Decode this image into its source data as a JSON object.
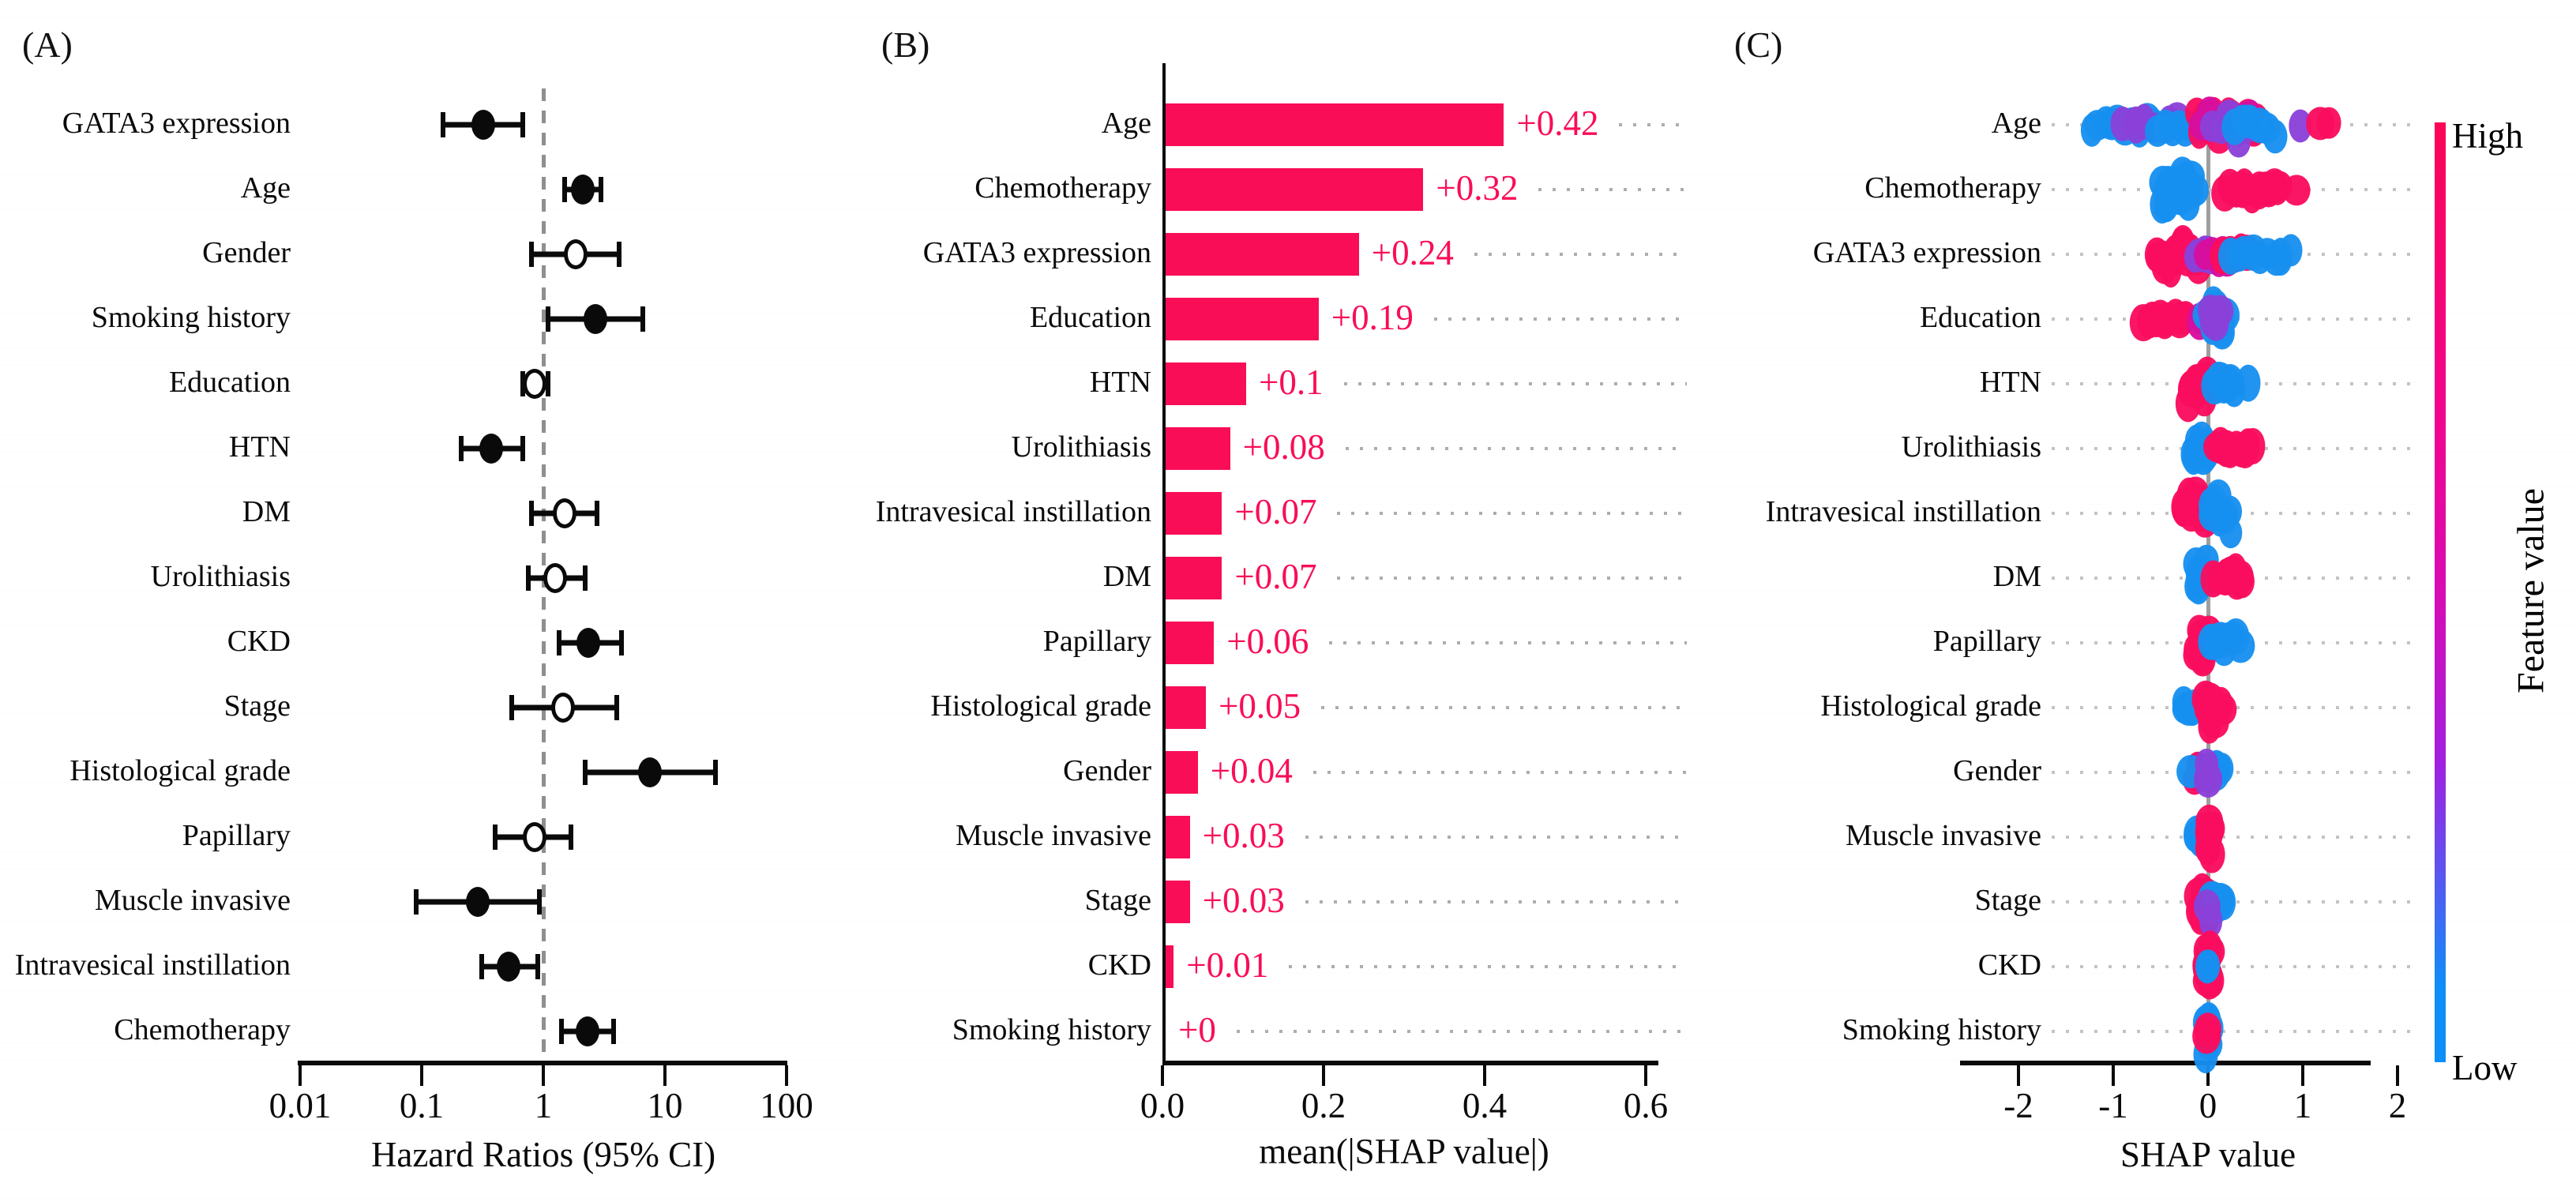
{
  "panels": [
    {
      "label": "(A)"
    },
    {
      "label": "(B)"
    },
    {
      "label": "(C)"
    }
  ],
  "chart_data": [
    {
      "id": "A",
      "type": "scatter",
      "subtype": "forest-plot",
      "xlabel": "Hazard Ratios (95% CI)",
      "xscale": "log",
      "xlim": [
        0.01,
        100
      ],
      "xticks": [
        0.01,
        0.1,
        1,
        10,
        100
      ],
      "xtick_labels": [
        "0.01",
        "0.1",
        "1",
        "10",
        "100"
      ],
      "reference_line": 1,
      "categories": [
        "GATA3 expression",
        "Age",
        "Gender",
        "Smoking history",
        "Education",
        "HTN",
        "DM",
        "Urolithiasis",
        "CKD",
        "Stage",
        "Histological grade",
        "Papillary",
        "Muscle invasive",
        "Intravesical instillation",
        "Chemotherapy"
      ],
      "hazard_ratio": [
        0.32,
        2.1,
        1.85,
        2.7,
        0.85,
        0.37,
        1.5,
        1.25,
        2.35,
        1.45,
        7.5,
        0.85,
        0.29,
        0.52,
        2.3
      ],
      "ci_low": [
        0.15,
        1.5,
        0.8,
        1.1,
        0.68,
        0.21,
        0.8,
        0.75,
        1.35,
        0.55,
        2.2,
        0.4,
        0.09,
        0.31,
        1.4
      ],
      "ci_high": [
        0.68,
        3.0,
        4.2,
        6.6,
        1.1,
        0.68,
        2.75,
        2.2,
        4.4,
        4.0,
        26.0,
        1.7,
        0.93,
        0.9,
        3.8
      ],
      "marker_filled": [
        true,
        true,
        false,
        true,
        false,
        true,
        false,
        false,
        true,
        false,
        true,
        false,
        true,
        true,
        true
      ]
    },
    {
      "id": "B",
      "type": "bar",
      "orientation": "horizontal",
      "xlabel": "mean(|SHAP value|)",
      "xlim": [
        0,
        0.6
      ],
      "xticks": [
        0.0,
        0.2,
        0.4,
        0.6
      ],
      "xtick_labels": [
        "0.0",
        "0.2",
        "0.4",
        "0.6"
      ],
      "bar_color": "#f90d56",
      "categories": [
        "Age",
        "Chemotherapy",
        "GATA3 expression",
        "Education",
        "HTN",
        "Urolithiasis",
        "Intravesical instillation",
        "DM",
        "Papillary",
        "Histological grade",
        "Gender",
        "Muscle invasive",
        "Stage",
        "CKD",
        "Smoking history"
      ],
      "values": [
        0.42,
        0.32,
        0.24,
        0.19,
        0.1,
        0.08,
        0.07,
        0.07,
        0.06,
        0.05,
        0.04,
        0.03,
        0.03,
        0.01,
        0.0
      ],
      "value_labels": [
        "+0.42",
        "+0.32",
        "+0.24",
        "+0.19",
        "+0.1",
        "+0.08",
        "+0.07",
        "+0.07",
        "+0.06",
        "+0.05",
        "+0.04",
        "+0.03",
        "+0.03",
        "+0.01",
        "+0"
      ]
    },
    {
      "id": "C",
      "type": "scatter",
      "subtype": "beeswarm",
      "xlabel": "SHAP value",
      "xlim": [
        -2,
        2
      ],
      "xticks": [
        -2,
        -1,
        0,
        1,
        2
      ],
      "xtick_labels": [
        "-2",
        "-1",
        "0",
        "1",
        "2"
      ],
      "reference_line": 0,
      "colorbar": {
        "high": "High",
        "low": "Low",
        "title": "Feature value",
        "gradient": [
          "#fa0556 0%",
          "#f10590 32%",
          "#d80bb4 50%",
          "#a21fe0 68%",
          "#5b55f0 80%",
          "#0d8ef8 92%",
          "#0d8ef8 100%"
        ]
      },
      "point_colors": {
        "red": "#fa0c5e",
        "magenta": "#d60f9e",
        "purple": "#8a41d8",
        "blue": "#1790ef"
      },
      "categories": [
        "Age",
        "Chemotherapy",
        "GATA3 expression",
        "Education",
        "HTN",
        "Urolithiasis",
        "Intravesical instillation",
        "DM",
        "Papillary",
        "Histological grade",
        "Gender",
        "Muscle invasive",
        "Stage",
        "CKD",
        "Smoking history"
      ],
      "rows": [
        {
          "label": "Age",
          "clusters": [
            {
              "x0": -1.27,
              "x1": -0.55,
              "n": 10,
              "color": "blue",
              "ry": 12
            },
            {
              "x0": -0.95,
              "x1": -0.25,
              "n": 6,
              "color": "purple",
              "ry": 10
            },
            {
              "x0": -0.55,
              "x1": -0.1,
              "n": 7,
              "color": "blue",
              "ry": 14
            },
            {
              "x0": -0.15,
              "x1": 0.55,
              "n": 18,
              "color": "red",
              "ry": 26
            },
            {
              "x0": -0.1,
              "x1": 0.5,
              "n": 8,
              "color": "magenta",
              "ry": 30
            },
            {
              "x0": 0.0,
              "x1": 0.55,
              "n": 6,
              "color": "purple",
              "ry": 28
            },
            {
              "x0": 0.25,
              "x1": 0.75,
              "n": 6,
              "color": "blue",
              "ry": 20
            },
            {
              "x0": 0.95,
              "x1": 1.0,
              "n": 1,
              "color": "purple",
              "ry": 2
            },
            {
              "x0": 1.15,
              "x1": 1.3,
              "n": 2,
              "color": "red",
              "ry": 4
            }
          ]
        },
        {
          "label": "Chemotherapy",
          "clusters": [
            {
              "x0": -0.5,
              "x1": -0.15,
              "n": 22,
              "color": "blue",
              "ry": 34
            },
            {
              "x0": 0.15,
              "x1": 0.8,
              "n": 14,
              "color": "red",
              "ry": 12
            },
            {
              "x0": 0.9,
              "x1": 0.93,
              "n": 1,
              "color": "red",
              "ry": 2
            }
          ]
        },
        {
          "label": "GATA3 expression",
          "clusters": [
            {
              "x0": -0.55,
              "x1": -0.1,
              "n": 16,
              "color": "red",
              "ry": 26
            },
            {
              "x0": -0.15,
              "x1": 0.05,
              "n": 5,
              "color": "purple",
              "ry": 20
            },
            {
              "x0": -0.05,
              "x1": 0.3,
              "n": 6,
              "color": "magenta",
              "ry": 10
            },
            {
              "x0": 0.1,
              "x1": 0.45,
              "n": 6,
              "color": "red",
              "ry": 8
            },
            {
              "x0": 0.2,
              "x1": 0.9,
              "n": 9,
              "color": "blue",
              "ry": 10
            }
          ]
        },
        {
          "label": "Education",
          "clusters": [
            {
              "x0": -0.7,
              "x1": -0.2,
              "n": 11,
              "color": "red",
              "ry": 10
            },
            {
              "x0": -0.12,
              "x1": -0.05,
              "n": 2,
              "color": "magenta",
              "ry": 6
            },
            {
              "x0": -0.02,
              "x1": 0.18,
              "n": 14,
              "color": "blue",
              "ry": 30
            },
            {
              "x0": 0.0,
              "x1": 0.15,
              "n": 6,
              "color": "purple",
              "ry": 26
            }
          ]
        },
        {
          "label": "HTN",
          "clusters": [
            {
              "x0": -0.2,
              "x1": -0.02,
              "n": 13,
              "color": "red",
              "ry": 30
            },
            {
              "x0": 0.06,
              "x1": 0.28,
              "n": 7,
              "color": "blue",
              "ry": 12
            },
            {
              "x0": 0.42,
              "x1": 0.46,
              "n": 1,
              "color": "blue",
              "ry": 2
            }
          ]
        },
        {
          "label": "Urolithiasis",
          "clusters": [
            {
              "x0": -0.16,
              "x1": -0.01,
              "n": 12,
              "color": "blue",
              "ry": 30
            },
            {
              "x0": 0.08,
              "x1": 0.5,
              "n": 9,
              "color": "red",
              "ry": 10
            }
          ]
        },
        {
          "label": "Intravesical instillation",
          "clusters": [
            {
              "x0": -0.27,
              "x1": -0.02,
              "n": 13,
              "color": "red",
              "ry": 30
            },
            {
              "x0": 0.02,
              "x1": 0.25,
              "n": 10,
              "color": "blue",
              "ry": 30
            }
          ]
        },
        {
          "label": "DM",
          "clusters": [
            {
              "x0": -0.14,
              "x1": -0.01,
              "n": 11,
              "color": "blue",
              "ry": 30
            },
            {
              "x0": 0.05,
              "x1": 0.4,
              "n": 10,
              "color": "red",
              "ry": 14
            }
          ]
        },
        {
          "label": "Papillary",
          "clusters": [
            {
              "x0": -0.13,
              "x1": 0.0,
              "n": 13,
              "color": "red",
              "ry": 34
            },
            {
              "x0": 0.02,
              "x1": 0.36,
              "n": 8,
              "color": "blue",
              "ry": 14
            }
          ]
        },
        {
          "label": "Histological grade",
          "clusters": [
            {
              "x0": -0.27,
              "x1": -0.12,
              "n": 5,
              "color": "blue",
              "ry": 8
            },
            {
              "x0": -0.03,
              "x1": 0.07,
              "n": 11,
              "color": "red",
              "ry": 30
            },
            {
              "x0": 0.1,
              "x1": 0.2,
              "n": 3,
              "color": "red",
              "ry": 6
            }
          ]
        },
        {
          "label": "Gender",
          "clusters": [
            {
              "x0": -0.14,
              "x1": -0.02,
              "n": 8,
              "color": "red",
              "ry": 22
            },
            {
              "x0": -0.18,
              "x1": -0.15,
              "n": 1,
              "color": "blue",
              "ry": 2
            },
            {
              "x0": 0.02,
              "x1": 0.14,
              "n": 6,
              "color": "blue",
              "ry": 14
            },
            {
              "x0": -0.04,
              "x1": 0.04,
              "n": 3,
              "color": "purple",
              "ry": 28
            }
          ]
        },
        {
          "label": "Muscle invasive",
          "clusters": [
            {
              "x0": -0.12,
              "x1": -0.02,
              "n": 8,
              "color": "blue",
              "ry": 18
            },
            {
              "x0": -0.02,
              "x1": 0.05,
              "n": 10,
              "color": "red",
              "ry": 32
            }
          ]
        },
        {
          "label": "Stage",
          "clusters": [
            {
              "x0": -0.1,
              "x1": -0.01,
              "n": 11,
              "color": "red",
              "ry": 32
            },
            {
              "x0": 0.03,
              "x1": 0.17,
              "n": 7,
              "color": "blue",
              "ry": 14
            },
            {
              "x0": -0.02,
              "x1": 0.02,
              "n": 2,
              "color": "purple",
              "ry": 40
            }
          ]
        },
        {
          "label": "CKD",
          "clusters": [
            {
              "x0": -0.03,
              "x1": 0.03,
              "n": 13,
              "color": "red",
              "ry": 36
            },
            {
              "x0": -0.01,
              "x1": 0.02,
              "n": 2,
              "color": "blue",
              "ry": 8
            }
          ]
        },
        {
          "label": "Smoking history",
          "clusters": [
            {
              "x0": -0.01,
              "x1": 0.01,
              "n": 10,
              "color": "blue",
              "ry": 44
            },
            {
              "x0": -0.01,
              "x1": 0.01,
              "n": 2,
              "color": "red",
              "ry": 10
            }
          ]
        }
      ]
    }
  ]
}
